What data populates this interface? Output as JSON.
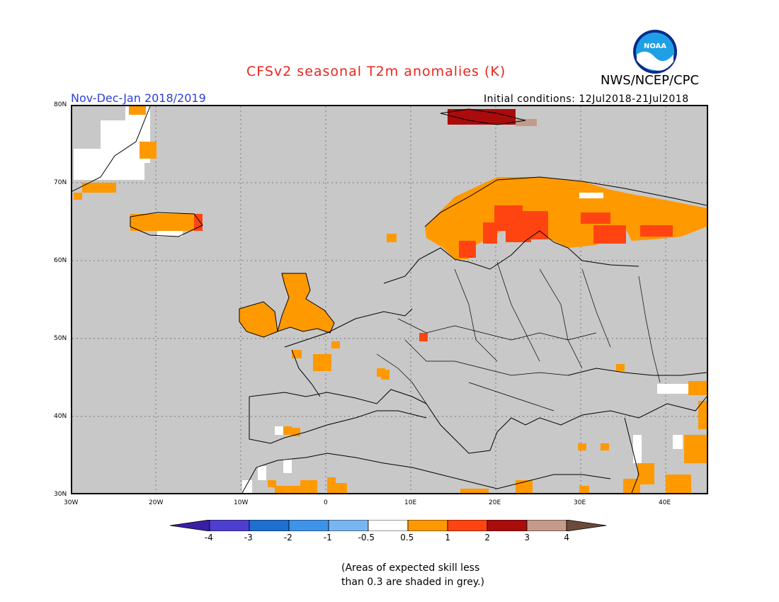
{
  "header": {
    "title": "CFSv2 seasonal T2m anomalies (K)",
    "agency": "NWS/NCEP/CPC",
    "period": "Nov-Dec-Jan 2018/2019",
    "initial_conditions": "Initial conditions: 12Jul2018-21Jul2018",
    "logo_text": "NOAA"
  },
  "map": {
    "lon_range": [
      -30,
      45
    ],
    "lat_range": [
      30,
      80
    ],
    "lat_labels": [
      "80N",
      "70N",
      "60N",
      "50N",
      "40N",
      "30N"
    ],
    "lon_labels": [
      "30W",
      "20W",
      "10W",
      "0",
      "10E",
      "20E",
      "30E",
      "40E"
    ],
    "background_meaning": "skill less than 0.3",
    "regions": [
      {
        "name": "northern-scandinavia",
        "category": "0.5-1"
      },
      {
        "name": "northern-finland",
        "category": "1-2"
      },
      {
        "name": "kola-karelia",
        "category": "0.5-1"
      },
      {
        "name": "svalbard",
        "category": "2-3"
      },
      {
        "name": "iceland",
        "category": "0.5-1"
      },
      {
        "name": "greenland-coast",
        "category": "0.5-1"
      },
      {
        "name": "ireland",
        "category": "0.5-1"
      },
      {
        "name": "great-britain",
        "category": "0.5-1"
      },
      {
        "name": "central-europe-point",
        "category": "1-2"
      },
      {
        "name": "north-africa",
        "category": "0.5-1"
      },
      {
        "name": "middle-east",
        "category": "0.5-1"
      }
    ]
  },
  "colorbar": {
    "labels": [
      "-4",
      "-3",
      "-2",
      "-1",
      "-0.5",
      "0.5",
      "1",
      "2",
      "3",
      "4"
    ],
    "colors": [
      "#3b1ea6",
      "#4d3fcf",
      "#1d6fd0",
      "#3d93ea",
      "#79b6f1",
      "#ffffff",
      "#ff9900",
      "#ff4411",
      "#aa0b0b",
      "#c49a8a",
      "#6b4a3a"
    ]
  },
  "note": {
    "line1": "(Areas of expected skill less",
    "line2": "than 0.3 are shaded in grey.)"
  },
  "legend_colors": {
    "grey": "#c8c8c8",
    "orange": "#ff9900",
    "red": "#ff4411",
    "darkred": "#aa0b0b"
  }
}
